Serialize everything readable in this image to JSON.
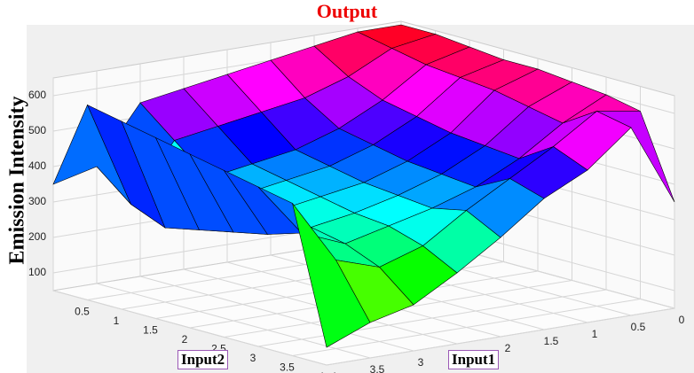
{
  "chart_data": {
    "type": "surface",
    "title": "Output",
    "xlabel": "Input1",
    "ylabel": "Input2",
    "zlabel": "Emission Intensity",
    "x": [
      0,
      0.5,
      1,
      1.5,
      2,
      2.5,
      3,
      3.5,
      4
    ],
    "y": [
      0,
      0.5,
      1,
      1.5,
      2,
      2.5,
      3,
      3.5,
      4
    ],
    "z": [
      [
        640,
        640,
        630,
        620,
        620,
        610,
        600,
        580,
        350
      ],
      [
        640,
        620,
        600,
        590,
        580,
        560,
        540,
        600,
        580
      ],
      [
        620,
        560,
        520,
        500,
        480,
        470,
        460,
        520,
        480
      ],
      [
        600,
        520,
        460,
        440,
        420,
        410,
        400,
        450,
        420
      ],
      [
        580,
        500,
        420,
        400,
        380,
        370,
        360,
        380,
        330
      ],
      [
        560,
        480,
        400,
        380,
        360,
        340,
        330,
        300,
        250
      ],
      [
        540,
        460,
        380,
        360,
        340,
        320,
        300,
        260,
        180
      ],
      [
        380,
        300,
        260,
        280,
        300,
        320,
        350,
        300,
        150
      ],
      [
        350,
        600,
        580,
        560,
        540,
        520,
        500,
        480,
        100
      ]
    ],
    "colormap": "hsv",
    "xlim": [
      0,
      4
    ],
    "ylim": [
      0,
      4
    ],
    "zlim": [
      50,
      650
    ],
    "xticks": [
      0,
      0.5,
      1,
      1.5,
      2,
      2.5,
      3,
      3.5,
      4
    ],
    "yticks": [
      0.5,
      1,
      1.5,
      2,
      2.5,
      3,
      3.5,
      4
    ],
    "zticks": [
      100,
      200,
      300,
      400,
      500,
      600
    ],
    "grid": true
  }
}
